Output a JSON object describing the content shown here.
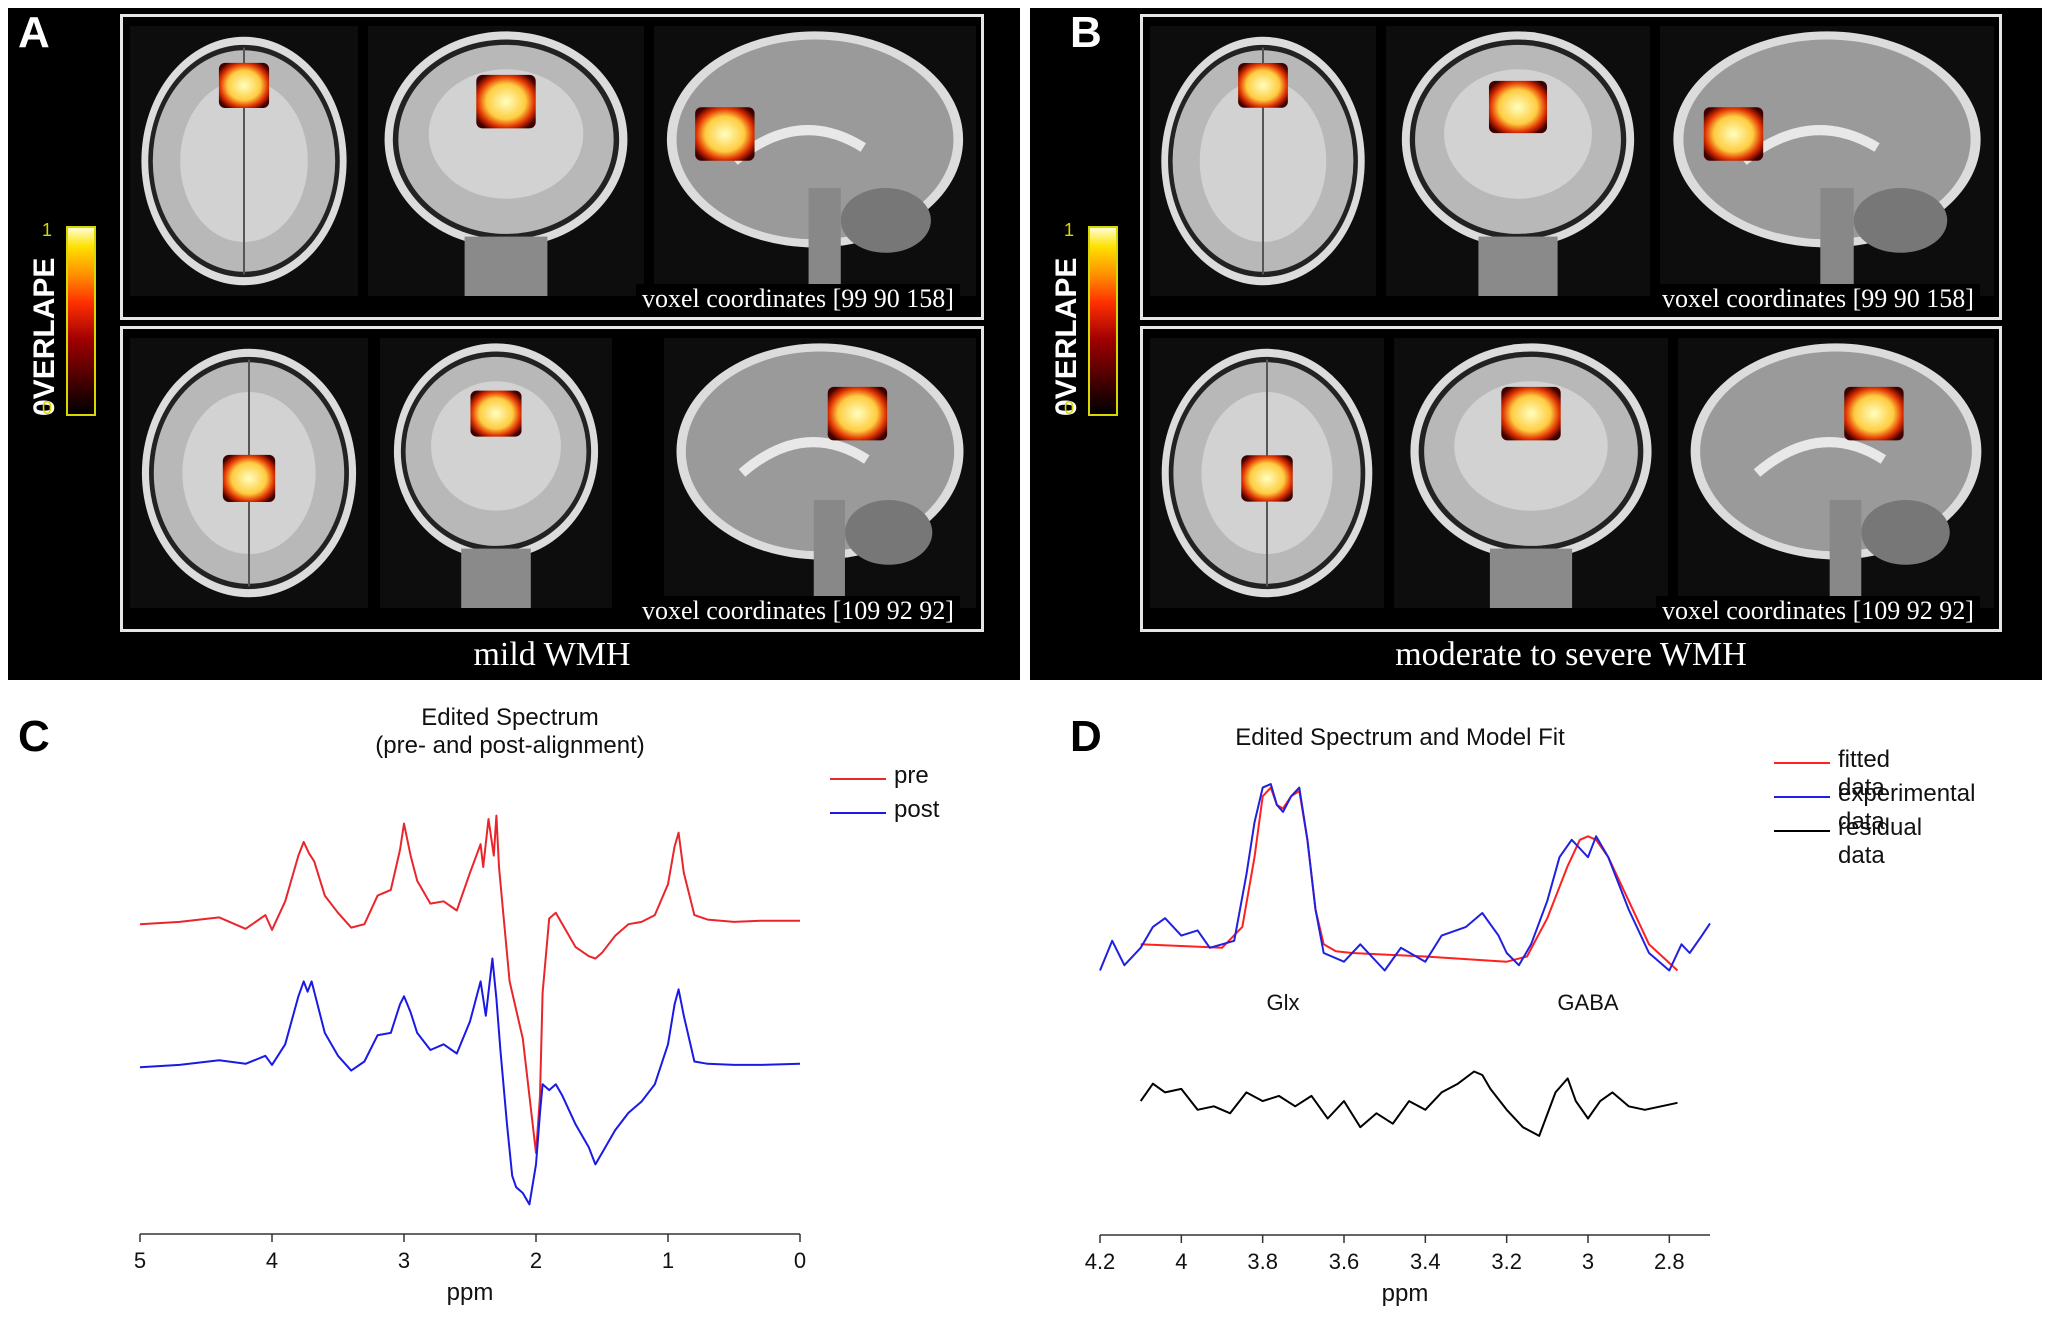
{
  "panels": {
    "A": {
      "letter": "A",
      "caption": "mild WMH",
      "top_voxel": "voxel coordinates [99 90 158]",
      "bottom_voxel": "voxel coordinates [109 92 92]"
    },
    "B": {
      "letter": "B",
      "caption": "moderate to severe WMH",
      "top_voxel": "voxel coordinates [99 90 158]",
      "bottom_voxel": "voxel coordinates [109 92 92]"
    },
    "C": {
      "letter": "C"
    },
    "D": {
      "letter": "D"
    }
  },
  "colorbar": {
    "label": "0VERLAPE",
    "max_tick": "1",
    "min_tick": "0"
  },
  "colors": {
    "pre": "#e8262b",
    "post": "#1a1ae6",
    "fitted": "#ff2020",
    "experimental": "#2020e0",
    "residual": "#000000",
    "overlay_hot": "#ffffc0"
  },
  "chart_data": [
    {
      "type": "line",
      "title": "Edited Spectrum",
      "subtitle": "(pre- and post-alignment)",
      "xlabel": "ppm",
      "xlim": [
        5,
        0
      ],
      "xticks": [
        "5",
        "4",
        "3",
        "2",
        "1",
        "0"
      ],
      "x_reversed": true,
      "y_axis_shown": false,
      "series": [
        {
          "name": "pre",
          "color": "#e8262b",
          "x": [
            5.0,
            4.7,
            4.4,
            4.2,
            4.05,
            4.0,
            3.9,
            3.8,
            3.76,
            3.72,
            3.68,
            3.6,
            3.5,
            3.4,
            3.3,
            3.2,
            3.1,
            3.03,
            3.0,
            2.95,
            2.9,
            2.8,
            2.7,
            2.6,
            2.5,
            2.42,
            2.4,
            2.36,
            2.32,
            2.3,
            2.28,
            2.25,
            2.2,
            2.1,
            2.05,
            2.0,
            1.97,
            1.95,
            1.9,
            1.85,
            1.8,
            1.7,
            1.6,
            1.55,
            1.5,
            1.4,
            1.3,
            1.2,
            1.1,
            1.0,
            0.95,
            0.92,
            0.88,
            0.8,
            0.7,
            0.5,
            0.3,
            0.0
          ],
          "y": [
            0.0,
            0.02,
            0.06,
            -0.04,
            0.08,
            -0.05,
            0.2,
            0.6,
            0.72,
            0.62,
            0.55,
            0.25,
            0.1,
            -0.03,
            0.0,
            0.25,
            0.3,
            0.65,
            0.88,
            0.6,
            0.38,
            0.18,
            0.2,
            0.12,
            0.45,
            0.7,
            0.5,
            0.92,
            0.6,
            0.95,
            0.5,
            0.12,
            -0.5,
            -1.0,
            -1.5,
            -2.0,
            -1.5,
            -0.6,
            0.05,
            0.1,
            0.0,
            -0.2,
            -0.28,
            -0.3,
            -0.25,
            -0.1,
            0.0,
            0.02,
            0.08,
            0.35,
            0.68,
            0.8,
            0.45,
            0.08,
            0.04,
            0.02,
            0.03,
            0.03
          ]
        },
        {
          "name": "post",
          "color": "#1a1ae6",
          "x": [
            5.0,
            4.7,
            4.4,
            4.2,
            4.05,
            4.0,
            3.9,
            3.8,
            3.76,
            3.73,
            3.7,
            3.6,
            3.5,
            3.4,
            3.3,
            3.2,
            3.1,
            3.03,
            3.0,
            2.95,
            2.9,
            2.8,
            2.7,
            2.6,
            2.5,
            2.42,
            2.38,
            2.33,
            2.3,
            2.27,
            2.22,
            2.18,
            2.15,
            2.1,
            2.05,
            2.0,
            1.97,
            1.95,
            1.9,
            1.85,
            1.8,
            1.7,
            1.6,
            1.55,
            1.5,
            1.4,
            1.3,
            1.2,
            1.1,
            1.0,
            0.95,
            0.92,
            0.88,
            0.8,
            0.7,
            0.5,
            0.3,
            0.0
          ],
          "y": [
            0.0,
            0.02,
            0.06,
            0.03,
            0.1,
            0.02,
            0.2,
            0.62,
            0.75,
            0.66,
            0.75,
            0.3,
            0.1,
            -0.03,
            0.05,
            0.28,
            0.3,
            0.55,
            0.62,
            0.48,
            0.3,
            0.15,
            0.2,
            0.12,
            0.4,
            0.75,
            0.45,
            0.95,
            0.6,
            0.15,
            -0.5,
            -0.95,
            -1.05,
            -1.1,
            -1.2,
            -0.85,
            -0.4,
            -0.15,
            -0.2,
            -0.15,
            -0.25,
            -0.5,
            -0.7,
            -0.85,
            -0.75,
            -0.55,
            -0.4,
            -0.3,
            -0.15,
            0.2,
            0.55,
            0.68,
            0.45,
            0.05,
            0.03,
            0.02,
            0.02,
            0.03
          ]
        }
      ],
      "legend": [
        "pre",
        "post"
      ],
      "legend_position": "top-right"
    },
    {
      "type": "line",
      "title": "Edited Spectrum and Model Fit",
      "xlabel": "ppm",
      "xlim": [
        4.2,
        2.7
      ],
      "xticks": [
        "4.2",
        "4",
        "3.8",
        "3.6",
        "3.4",
        "3.2",
        "3",
        "2.8"
      ],
      "x_reversed": true,
      "y_axis_shown": false,
      "annotations": [
        {
          "text": "Glx",
          "x": 3.75
        },
        {
          "text": "GABA",
          "x": 3.0
        }
      ],
      "series": [
        {
          "name": "fitted data",
          "color": "#ff2020",
          "x": [
            4.1,
            3.9,
            3.85,
            3.82,
            3.8,
            3.78,
            3.765,
            3.75,
            3.73,
            3.71,
            3.69,
            3.67,
            3.65,
            3.62,
            3.58,
            3.4,
            3.2,
            3.15,
            3.1,
            3.05,
            3.02,
            3.0,
            2.98,
            2.95,
            2.9,
            2.85,
            2.78
          ],
          "y": [
            0.1,
            0.08,
            0.2,
            0.6,
            0.95,
            1.0,
            0.9,
            0.88,
            0.95,
            0.98,
            0.7,
            0.3,
            0.1,
            0.06,
            0.05,
            0.03,
            0.0,
            0.03,
            0.25,
            0.55,
            0.7,
            0.72,
            0.7,
            0.6,
            0.35,
            0.1,
            -0.05
          ]
        },
        {
          "name": "experimental data",
          "color": "#2020e0",
          "x": [
            4.2,
            4.17,
            4.14,
            4.1,
            4.07,
            4.04,
            4.0,
            3.96,
            3.93,
            3.9,
            3.87,
            3.84,
            3.82,
            3.8,
            3.78,
            3.765,
            3.75,
            3.73,
            3.71,
            3.69,
            3.67,
            3.65,
            3.6,
            3.56,
            3.5,
            3.46,
            3.4,
            3.36,
            3.3,
            3.26,
            3.22,
            3.2,
            3.17,
            3.14,
            3.1,
            3.07,
            3.04,
            3.02,
            3.0,
            2.98,
            2.95,
            2.9,
            2.85,
            2.8,
            2.77,
            2.75,
            2.72,
            2.7
          ],
          "y": [
            -0.05,
            0.12,
            -0.02,
            0.08,
            0.2,
            0.25,
            0.15,
            0.18,
            0.08,
            0.1,
            0.12,
            0.5,
            0.8,
            1.0,
            1.02,
            0.9,
            0.86,
            0.95,
            1.0,
            0.7,
            0.3,
            0.05,
            0.0,
            0.1,
            -0.05,
            0.08,
            0.0,
            0.15,
            0.2,
            0.28,
            0.15,
            0.05,
            -0.02,
            0.1,
            0.35,
            0.6,
            0.7,
            0.65,
            0.6,
            0.72,
            0.6,
            0.3,
            0.05,
            -0.05,
            0.1,
            0.05,
            0.15,
            0.22
          ]
        },
        {
          "name": "residual data",
          "color": "#000000",
          "x": [
            4.1,
            4.07,
            4.04,
            4.0,
            3.96,
            3.92,
            3.88,
            3.84,
            3.8,
            3.76,
            3.72,
            3.68,
            3.64,
            3.6,
            3.56,
            3.52,
            3.48,
            3.44,
            3.4,
            3.36,
            3.32,
            3.28,
            3.26,
            3.24,
            3.2,
            3.16,
            3.12,
            3.08,
            3.05,
            3.03,
            3.0,
            2.97,
            2.94,
            2.9,
            2.86,
            2.82,
            2.78
          ],
          "y": [
            -0.35,
            -0.25,
            -0.3,
            -0.28,
            -0.4,
            -0.38,
            -0.42,
            -0.3,
            -0.35,
            -0.32,
            -0.38,
            -0.32,
            -0.45,
            -0.35,
            -0.5,
            -0.42,
            -0.48,
            -0.35,
            -0.4,
            -0.3,
            -0.25,
            -0.18,
            -0.2,
            -0.28,
            -0.4,
            -0.5,
            -0.55,
            -0.3,
            -0.22,
            -0.35,
            -0.45,
            -0.35,
            -0.3,
            -0.38,
            -0.4,
            -0.38,
            -0.36
          ]
        }
      ],
      "legend": [
        "fitted data",
        "experimental data",
        "residual data"
      ],
      "legend_position": "top-right"
    }
  ]
}
